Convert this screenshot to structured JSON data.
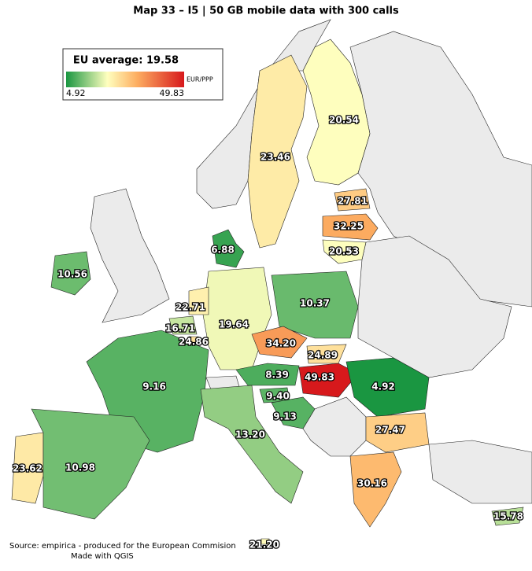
{
  "title": "Map 33 – I5 | 50 GB mobile data with 300 calls",
  "legend": {
    "title": "EU average: 19.58",
    "min": 4.92,
    "max": 49.83,
    "unit": "EUR/PPP"
  },
  "regions": {
    "values": [
      20.54,
      23.46,
      27.81,
      32.25,
      20.53,
      6.88,
      10.56,
      10.37,
      19.64,
      22.71,
      16.71,
      24.86,
      34.2,
      24.89,
      8.39,
      49.83,
      4.92,
      9.4,
      9.13,
      9.16,
      27.47,
      13.2,
      23.62,
      10.98,
      30.16,
      15.78,
      21.2
    ],
    "value_labels": [
      "20.54",
      "23.46",
      "27.81",
      "32.25",
      "20.53",
      "6.88",
      "10.56",
      "10.37",
      "19.64",
      "22.71",
      "16.71",
      "24.86",
      "34.20",
      "24.89",
      "8.39",
      "49.83",
      "4.92",
      "9.40",
      "9.13",
      "9.16",
      "27.47",
      "13.20",
      "23.62",
      "10.98",
      "30.16",
      "15.78",
      "21.20"
    ]
  },
  "source": "Source: empirica - produced for the European Commision",
  "credit": "Made with QGIS"
}
